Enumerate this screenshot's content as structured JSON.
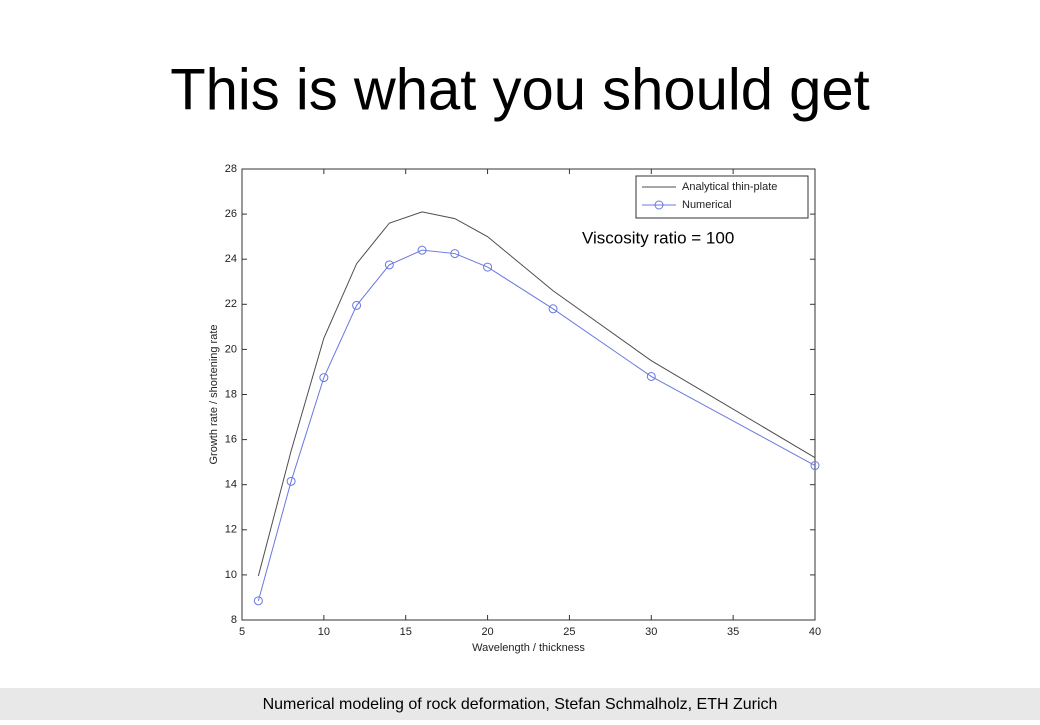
{
  "title": "This is what you should get",
  "footer": "Numerical modeling of rock deformation, Stefan Schmalholz, ETH Zurich",
  "chart_data": {
    "type": "line",
    "annotation": "Viscosity ratio = 100",
    "x_label": "Wavelength / thickness",
    "y_label": "Growth rate / shortening rate",
    "x": [
      6,
      8,
      10,
      12,
      14,
      16,
      18,
      20,
      24,
      30,
      40
    ],
    "series": [
      {
        "name": "Analytical thin-plate",
        "color": "#4d4d4d",
        "marker": "none",
        "values": [
          9.95,
          15.5,
          20.5,
          23.8,
          25.6,
          26.1,
          25.8,
          25.0,
          22.6,
          19.5,
          15.2
        ]
      },
      {
        "name": "Numerical",
        "color": "#6a78e0",
        "marker": "circle",
        "values": [
          8.85,
          14.15,
          18.75,
          21.95,
          23.75,
          24.4,
          24.25,
          23.65,
          21.8,
          18.8,
          14.85
        ]
      }
    ],
    "xlim": [
      5,
      40
    ],
    "xticks": [
      5,
      10,
      15,
      20,
      25,
      30,
      35,
      40
    ],
    "ylim": [
      8,
      28
    ],
    "yticks": [
      8,
      10,
      12,
      14,
      16,
      18,
      20,
      22,
      24,
      26,
      28
    ],
    "legend": "top-right"
  }
}
